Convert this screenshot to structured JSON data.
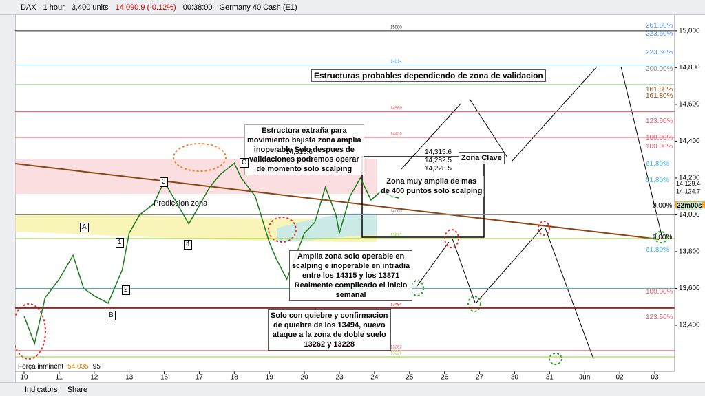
{
  "toolbar": {
    "symbol": "DAX",
    "timeframe": "1 hour",
    "units": "3,400 units",
    "price": "14,090.9 (-0.12%)",
    "time": "00:38:00",
    "instrument": "Germany 40 Cash (E1)"
  },
  "chart_data": {
    "type": "line",
    "color": "#1b7a1b",
    "x": [
      0,
      0.3,
      0.6,
      1,
      1.4,
      1.7,
      2,
      2.4,
      2.8,
      3,
      3.3,
      3.7,
      4,
      4.4,
      4.7,
      5,
      5.3,
      5.6,
      6,
      6.2,
      6.6,
      7,
      7.2,
      7.5,
      7.8,
      8,
      8.3,
      8.6,
      8.9,
      9,
      9.3,
      9.6,
      9.9,
      10.2,
      10.5,
      10.7
    ],
    "values": [
      13450,
      13300,
      13550,
      13650,
      13780,
      13600,
      13560,
      13520,
      13700,
      13900,
      14000,
      14060,
      14180,
      14050,
      13950,
      14050,
      14150,
      14220,
      14280,
      14200,
      14100,
      13850,
      13760,
      13650,
      13800,
      13900,
      13960,
      14150,
      14000,
      13900,
      14100,
      14200,
      14080,
      14130,
      14100,
      14090.9
    ],
    "xlim": [
      -0.255,
      18.57
    ],
    "ylim": [
      13187,
      15063
    ],
    "xticks": [
      {
        "value": 0,
        "label": "10"
      },
      {
        "value": 1,
        "label": "11"
      },
      {
        "value": 2,
        "label": "12"
      },
      {
        "value": 3,
        "label": "13"
      },
      {
        "value": 4,
        "label": "16"
      },
      {
        "value": 5,
        "label": "17"
      },
      {
        "value": 6,
        "label": "18"
      },
      {
        "value": 7,
        "label": "19"
      },
      {
        "value": 8,
        "label": "20"
      },
      {
        "value": 9,
        "label": "23"
      },
      {
        "value": 10,
        "label": "24"
      },
      {
        "value": 11,
        "label": "25"
      },
      {
        "value": 12,
        "label": "26"
      },
      {
        "value": 13,
        "label": "27"
      },
      {
        "value": 14,
        "label": "30"
      },
      {
        "value": 15,
        "label": "31"
      },
      {
        "value": 16,
        "label": "Jun"
      },
      {
        "value": 17,
        "label": "02"
      },
      {
        "value": 18,
        "label": "03"
      }
    ],
    "yticks": [
      {
        "value": 15000,
        "label": "15,000"
      },
      {
        "value": 14800,
        "label": "14,800"
      },
      {
        "value": 14600,
        "label": "14,600"
      },
      {
        "value": 14400,
        "label": "14,400"
      },
      {
        "value": 14200,
        "label": "14,200"
      },
      {
        "value": 14000,
        "label": "14,000"
      },
      {
        "value": 13800,
        "label": "13,800"
      },
      {
        "value": 13600,
        "label": "13,600"
      },
      {
        "value": 13400,
        "label": "13,400"
      }
    ],
    "levels": [
      {
        "value": 15000,
        "label": "15000",
        "color": "#222222"
      },
      {
        "value": 14814,
        "label": "14814",
        "color": "#4fb3e8"
      },
      {
        "value": 14708,
        "label": "14708",
        "color": "#7bc67b"
      },
      {
        "value": 14560,
        "label": "14560",
        "color": "#e05a6a"
      },
      {
        "value": 14420,
        "label": "14420",
        "color": "#e05a6a"
      },
      {
        "value": 14000,
        "label": "14000",
        "color": "#888888"
      },
      {
        "value": 13871,
        "label": "13871",
        "color": "#9acd32"
      },
      {
        "value": 13600,
        "label": "13600",
        "color": "#3fb6d6"
      },
      {
        "value": 13494,
        "label": "13494",
        "color": "#a0201c"
      },
      {
        "value": 13262,
        "label": "13262",
        "color": "#e05a6a"
      },
      {
        "value": 13228,
        "label": "13228",
        "color": "#9acd32"
      }
    ],
    "price_labels": [
      {
        "value": 14129.4,
        "label": "14,129.4"
      },
      {
        "value": 14124.7,
        "label": "14,124.7"
      },
      {
        "value": 14090.9,
        "label": "14,090.9"
      }
    ],
    "countdown": "22m00s",
    "box_levels": [
      "14,315.6",
      "14,282.5",
      "14,228.5",
      "14,315.6"
    ],
    "notes": [
      "Estructuras probables dependiendo de zona de validacion",
      "Estructura extraña para\nmovimiento bajista zona amplia\ninoperable Solo despues de\nvalidaciones podremos operar\nde momento solo scalping",
      "Zona Clave",
      "Zona muy amplia de mas\nde 400 puntos solo scalping",
      "Amplia zona solo operable en\nscalping e inoperable en intradia\nentre los 14315 y los 13871\nRealmente complicado el inicio\nsemanal",
      "Solo con quiebre y confirmacion\nde quiebre de los 13494, nuevo\nataque a la zona de doble suelo\n13262 y 13228",
      "Prediccion zona"
    ],
    "waves": [
      "A",
      "B",
      "C",
      "1",
      "2",
      "3",
      "4"
    ],
    "fib_labels": [
      "261.80%",
      "223.60%",
      "223.60%",
      "200.00%",
      "161.80%",
      "161.80%",
      "123.60%",
      "100.00%",
      "100.00%",
      "61.80%",
      "51.80%",
      "0.00%",
      "0.00%",
      "61.80%",
      "100.00%",
      "123.60%"
    ]
  },
  "indicator": {
    "name": "Força inminent",
    "value": "54.035",
    "period": "95"
  },
  "bottom": {
    "indicators": "Indicators",
    "share": "Share"
  }
}
